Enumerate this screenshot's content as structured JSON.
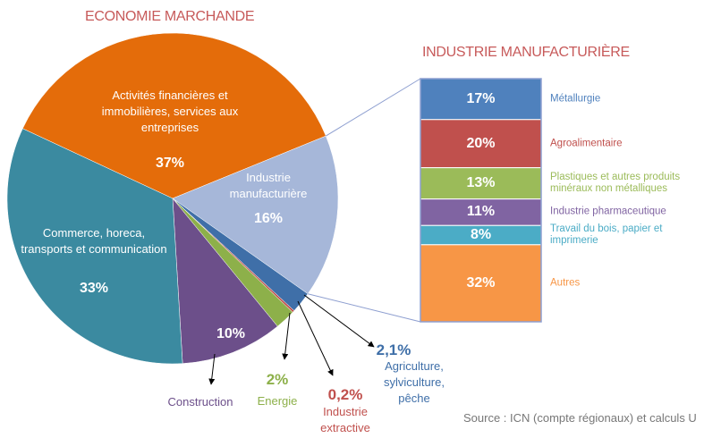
{
  "chart_data": [
    {
      "type": "pie",
      "title": "ECONOMIE MARCHANDE",
      "categories": [
        "Activités financières et immobilières, services aux entreprises",
        "Industrie manufacturière",
        "Agriculture, sylviculture, pêche",
        "Industrie extractive",
        "Energie",
        "Construction",
        "Commerce, horeca, transports et communication"
      ],
      "values": [
        37,
        16,
        2.1,
        0.2,
        2,
        10,
        33
      ],
      "value_labels": [
        "37%",
        "16%",
        "2,1%",
        "0,2%",
        "2%",
        "10%",
        "33%"
      ],
      "colors": [
        "#e46c0a",
        "#a6b7d9",
        "#3f6fa8",
        "#c0504d",
        "#8db04a",
        "#6c4f8a",
        "#3b8aa0"
      ]
    },
    {
      "type": "bar",
      "title": "INDUSTRIE MANUFACTURIÈRE",
      "categories": [
        "Métallurgie",
        "Agroalimentaire",
        "Plastiques et autres produits minéraux non métalliques",
        "Industrie pharmaceutique",
        "Travail du bois, papier et imprimerie",
        "Autres"
      ],
      "values": [
        17,
        20,
        13,
        11,
        8,
        32
      ],
      "value_labels": [
        "17%",
        "20%",
        "13%",
        "11%",
        "8%",
        "32%"
      ],
      "colors": [
        "#4f81bd",
        "#c0504d",
        "#9bbb59",
        "#8064a2",
        "#4bacc6",
        "#f79646"
      ]
    }
  ],
  "source": "Source : ICN (compte régionaux) et calculs U"
}
